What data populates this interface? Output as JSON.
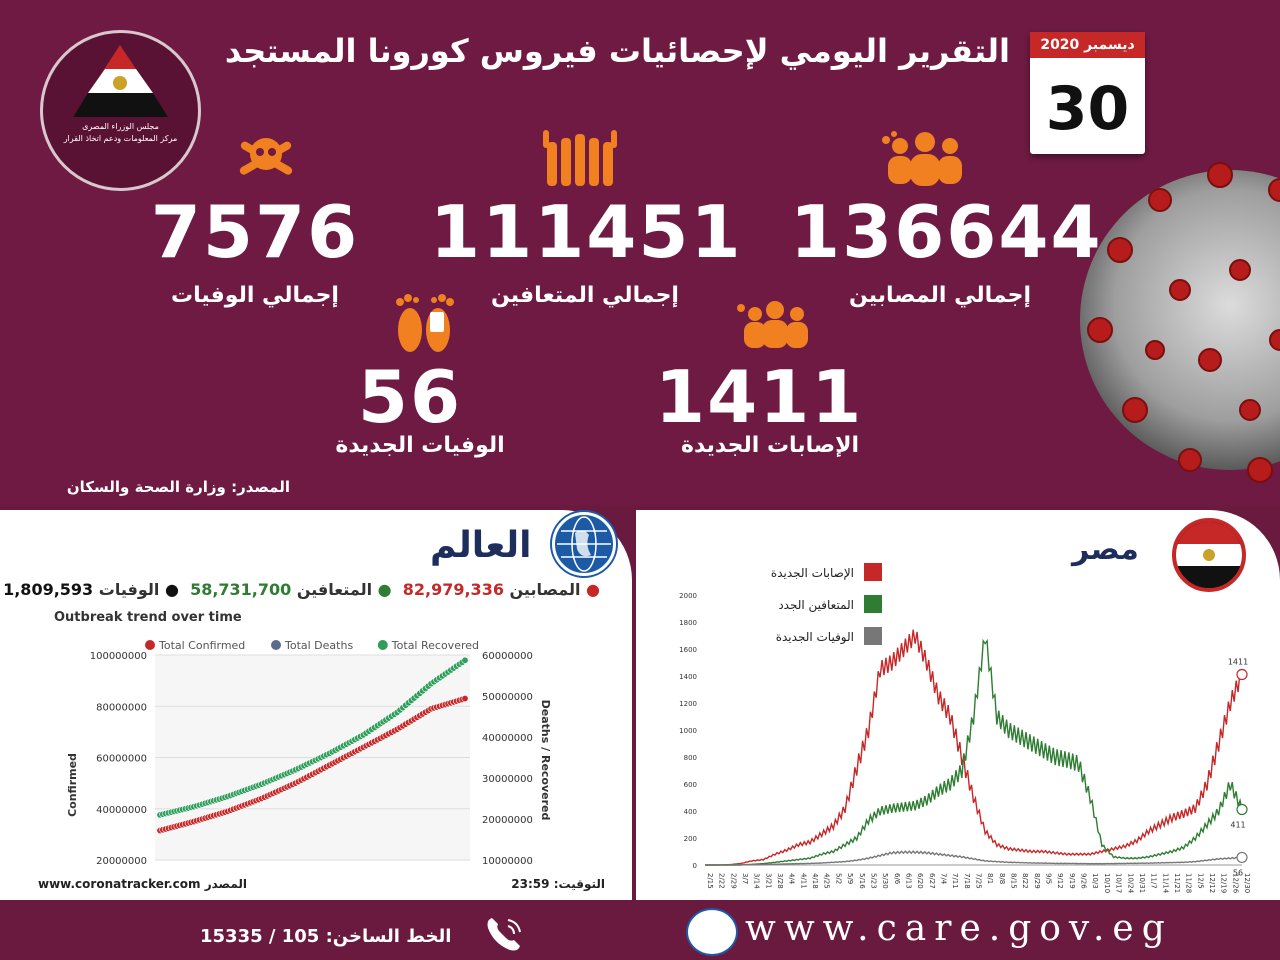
{
  "header": {
    "title": "التقرير اليومي لإحصائيات فيروس كورونا المستجد",
    "logo_text": "مجلس الوزراء المصرى\nمركز المعلومات ودعم اتخاذ القرار",
    "date_month": "ديسمبر 2020",
    "date_day": "30"
  },
  "stats": {
    "total_cases": {
      "value": "136644",
      "label": "إجمالي المصابين"
    },
    "total_recovered": {
      "value": "111451",
      "label": "إجمالي المتعافين"
    },
    "total_deaths": {
      "value": "7576",
      "label": "إجمالي الوفيات"
    },
    "new_cases": {
      "value": "1411",
      "label": "الإصابات الجديدة"
    },
    "new_deaths": {
      "value": "56",
      "label": "الوفيات الجديدة"
    }
  },
  "source": "المصدر: وزارة الصحة والسكان",
  "world": {
    "title": "العالم",
    "confirmed_label": "المصابين",
    "confirmed_value": "82,979,336",
    "recovered_label": "المتعافين",
    "recovered_value": "58,731,700",
    "deaths_label": "الوفيات",
    "deaths_value": "1,809,593",
    "footer_source": "www.coronatracker.com المصدر",
    "footer_time_label": "التوقيت:",
    "footer_time": "23:59"
  },
  "egypt": {
    "title": "مصر"
  },
  "footer": {
    "url": "www.care.gov.eg",
    "hotline": "الخط الساخن: 105 / 15335"
  },
  "colors": {
    "accent": "#f08020",
    "bg": "#6e1a42",
    "cases": "#c62828",
    "recovered": "#2e7d32",
    "deaths": "#777777"
  },
  "chart_data": [
    {
      "type": "line",
      "title": "Outbreak trend over time",
      "ylabel": "Confirmed",
      "y2label": "Deaths / Recovered",
      "ylim": [
        20000000,
        100000000
      ],
      "y2lim": [
        10000000,
        60000000
      ],
      "yticks": [
        "20000000",
        "40000000",
        "60000000",
        "80000000",
        "100000000"
      ],
      "y2ticks": [
        "10000000",
        "20000000",
        "30000000",
        "40000000",
        "50000000",
        "60000000"
      ],
      "legend": "top",
      "series": [
        {
          "name": "Total Confirmed",
          "axis": "left",
          "color": "#c62828",
          "values": [
            31500000,
            35000000,
            39000000,
            44000000,
            50000000,
            57000000,
            64000000,
            71000000,
            79000000,
            83000000
          ]
        },
        {
          "name": "Total Deaths",
          "axis": "right",
          "color": "#5b6b8c",
          "values": []
        },
        {
          "name": "Total Recovered",
          "axis": "right",
          "color": "#2e9e5a",
          "values": [
            21000000,
            23000000,
            25500000,
            28500000,
            32000000,
            36000000,
            40500000,
            46000000,
            53000000,
            58700000
          ]
        }
      ]
    },
    {
      "type": "line",
      "legend": "top-left",
      "ylim": [
        0,
        2000
      ],
      "yticks": [
        "0",
        "200",
        "400",
        "600",
        "800",
        "1000",
        "1200",
        "1400",
        "1600",
        "1800",
        "2000"
      ],
      "categories": [
        "2/15",
        "2/22",
        "2/29",
        "3/7",
        "3/14",
        "3/21",
        "3/28",
        "4/4",
        "4/11",
        "4/18",
        "4/25",
        "5/2",
        "5/9",
        "5/16",
        "5/23",
        "5/30",
        "6/6",
        "6/13",
        "6/20",
        "6/27",
        "7/4",
        "7/11",
        "7/18",
        "7/25",
        "8/1",
        "8/8",
        "8/15",
        "8/22",
        "8/29",
        "9/5",
        "9/12",
        "9/19",
        "9/26",
        "10/3",
        "10/10",
        "10/17",
        "10/24",
        "10/31",
        "11/7",
        "11/14",
        "11/21",
        "11/28",
        "12/5",
        "12/12",
        "12/19",
        "12/26",
        "12/30"
      ],
      "series": [
        {
          "name": "الإصابات الجديدة",
          "color": "#c62828",
          "end_label": "1411",
          "values": [
            0,
            0,
            2,
            10,
            30,
            40,
            80,
            110,
            150,
            170,
            230,
            290,
            420,
            720,
            1000,
            1450,
            1500,
            1600,
            1700,
            1500,
            1250,
            1100,
            800,
            500,
            250,
            150,
            120,
            110,
            100,
            100,
            90,
            80,
            80,
            80,
            100,
            120,
            140,
            180,
            250,
            300,
            350,
            380,
            420,
            600,
            900,
            1200,
            1411
          ]
        },
        {
          "name": "المتعافين الجدد",
          "color": "#2e7d32",
          "end_label": "411",
          "values": [
            0,
            0,
            0,
            0,
            5,
            10,
            20,
            30,
            40,
            50,
            80,
            100,
            150,
            200,
            330,
            400,
            420,
            430,
            440,
            480,
            550,
            600,
            700,
            1100,
            1700,
            1100,
            1000,
            950,
            900,
            850,
            800,
            780,
            750,
            500,
            150,
            60,
            50,
            50,
            60,
            80,
            100,
            130,
            200,
            300,
            400,
            600,
            411
          ]
        },
        {
          "name": "الوفيات الجديدة",
          "color": "#777777",
          "end_label": "56",
          "values": [
            0,
            0,
            0,
            1,
            2,
            3,
            5,
            8,
            10,
            12,
            15,
            20,
            25,
            35,
            50,
            70,
            90,
            95,
            95,
            90,
            80,
            70,
            60,
            45,
            30,
            25,
            20,
            18,
            15,
            14,
            12,
            12,
            11,
            10,
            10,
            11,
            12,
            13,
            14,
            16,
            18,
            20,
            25,
            35,
            45,
            50,
            56
          ]
        }
      ]
    }
  ]
}
